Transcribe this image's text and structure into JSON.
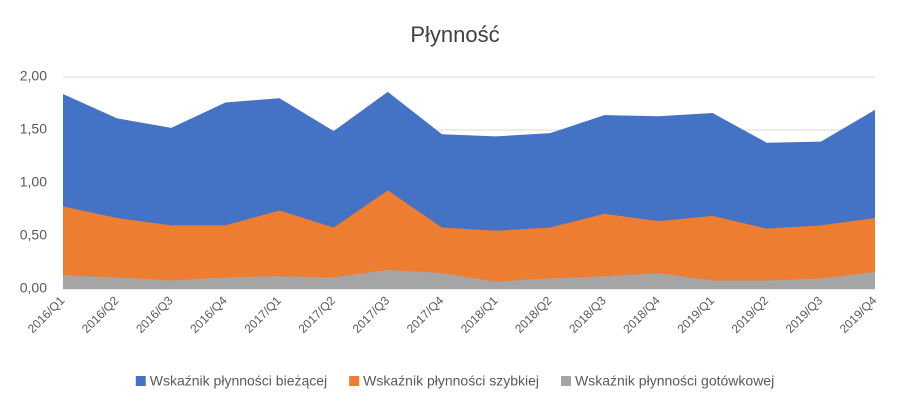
{
  "chart_data": {
    "type": "area",
    "title": "Płynność",
    "categories": [
      "2016/Q1",
      "2016/Q2",
      "2016/Q3",
      "2016/Q4",
      "2017/Q1",
      "2017/Q2",
      "2017/Q3",
      "2017/Q4",
      "2018/Q1",
      "2018/Q2",
      "2018/Q3",
      "2018/Q4",
      "2019/Q1",
      "2019/Q2",
      "2019/Q3",
      "2019/Q4"
    ],
    "series": [
      {
        "name": "Wskaźnik płynności bieżącej",
        "color": "#4472c4",
        "values": [
          1.84,
          1.61,
          1.52,
          1.76,
          1.8,
          1.49,
          1.86,
          1.46,
          1.44,
          1.47,
          1.64,
          1.63,
          1.66,
          1.38,
          1.39,
          1.69
        ]
      },
      {
        "name": "Wskaźnik płynności szybkiej",
        "color": "#ed7d31",
        "values": [
          0.78,
          0.67,
          0.6,
          0.6,
          0.74,
          0.58,
          0.93,
          0.58,
          0.55,
          0.58,
          0.71,
          0.64,
          0.69,
          0.57,
          0.6,
          0.67
        ]
      },
      {
        "name": "Wskaźnik płynności gotówkowej",
        "color": "#a5a5a5",
        "values": [
          0.13,
          0.11,
          0.08,
          0.11,
          0.12,
          0.11,
          0.18,
          0.15,
          0.07,
          0.1,
          0.12,
          0.15,
          0.08,
          0.08,
          0.1,
          0.16
        ]
      }
    ],
    "ylim": [
      0,
      2
    ],
    "yticks": [
      {
        "value": 0,
        "label": "0,00"
      },
      {
        "value": 0.5,
        "label": "0,50"
      },
      {
        "value": 1,
        "label": "1,00"
      },
      {
        "value": 1.5,
        "label": "1,50"
      },
      {
        "value": 2,
        "label": "2,00"
      }
    ],
    "grid": true,
    "legend": "bottom"
  }
}
